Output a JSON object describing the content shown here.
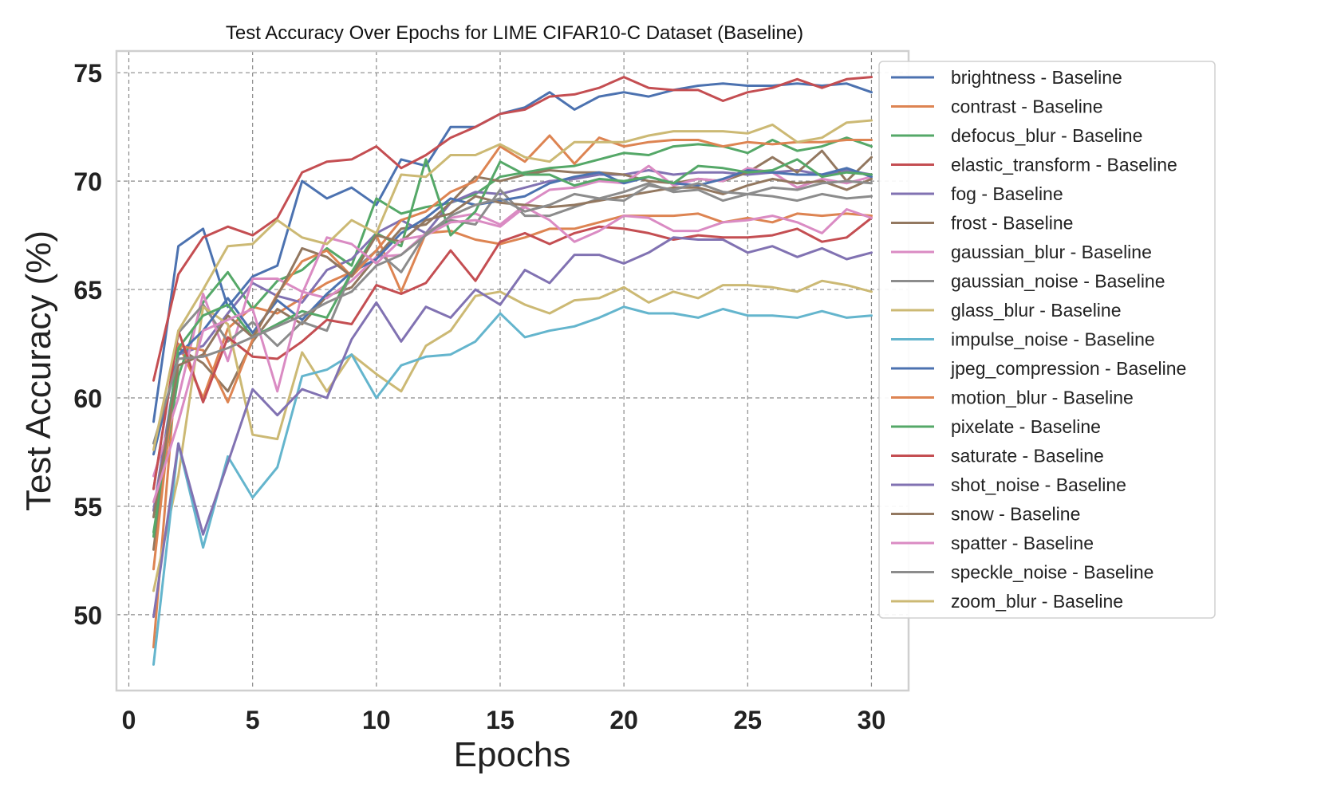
{
  "chart_data": {
    "type": "line",
    "title": "Test Accuracy Over Epochs for LIME CIFAR10-C Dataset (Baseline)",
    "xlabel": "Epochs",
    "ylabel": "Test Accuracy (%)",
    "xlim": [
      -0.5,
      31.5
    ],
    "ylim": [
      46.5,
      76
    ],
    "xticks": [
      0,
      5,
      10,
      15,
      20,
      25,
      30
    ],
    "yticks": [
      50,
      55,
      60,
      65,
      70,
      75
    ],
    "grid": true,
    "legend_position": "upper-right, outside plot area",
    "x": [
      1,
      2,
      3,
      4,
      5,
      6,
      7,
      8,
      9,
      10,
      11,
      12,
      13,
      14,
      15,
      16,
      17,
      18,
      19,
      20,
      21,
      22,
      23,
      24,
      25,
      26,
      27,
      28,
      29,
      30
    ],
    "series": [
      {
        "name": "brightness - Baseline",
        "color": "#4c72b0",
        "values": [
          58.9,
          67.0,
          67.8,
          64.2,
          65.6,
          66.1,
          70.0,
          69.2,
          69.7,
          68.9,
          71.0,
          70.7,
          72.5,
          72.5,
          73.1,
          73.4,
          74.1,
          73.3,
          73.9,
          74.1,
          73.9,
          74.2,
          74.4,
          74.5,
          74.4,
          74.4,
          74.5,
          74.4,
          74.5,
          74.1
        ]
      },
      {
        "name": "contrast - Baseline",
        "color": "#dd8452",
        "values": [
          48.5,
          62.5,
          60.0,
          63.2,
          64.2,
          63.9,
          64.6,
          65.3,
          65.8,
          67.5,
          64.9,
          67.6,
          67.7,
          67.3,
          67.1,
          67.4,
          67.8,
          67.8,
          68.1,
          68.4,
          68.4,
          68.4,
          68.5,
          68.1,
          68.3,
          68.1,
          68.5,
          68.4,
          68.5,
          68.4
        ]
      },
      {
        "name": "defocus_blur - Baseline",
        "color": "#55a868",
        "values": [
          53.8,
          61.0,
          64.4,
          65.8,
          64.1,
          65.4,
          65.9,
          66.9,
          66.1,
          69.2,
          68.5,
          68.8,
          69.0,
          69.4,
          70.2,
          70.4,
          70.6,
          70.7,
          71.0,
          71.3,
          71.2,
          71.6,
          71.7,
          71.6,
          71.3,
          71.9,
          71.4,
          71.6,
          72.0,
          71.6
        ]
      },
      {
        "name": "elastic_transform - Baseline",
        "color": "#c44e52",
        "values": [
          60.8,
          65.7,
          67.4,
          67.9,
          67.5,
          68.3,
          70.4,
          70.9,
          71.0,
          71.6,
          70.6,
          71.2,
          72.0,
          72.5,
          73.1,
          73.3,
          73.9,
          74.0,
          74.3,
          74.8,
          74.3,
          74.2,
          74.2,
          73.7,
          74.1,
          74.3,
          74.7,
          74.3,
          74.7,
          74.8
        ]
      },
      {
        "name": "fog - Baseline",
        "color": "#8172b2",
        "values": [
          54.8,
          62.0,
          62.4,
          63.9,
          65.3,
          64.7,
          64.4,
          65.9,
          66.4,
          67.6,
          68.2,
          67.6,
          69.0,
          69.5,
          69.4,
          69.7,
          70.0,
          70.1,
          70.3,
          70.3,
          70.5,
          70.3,
          70.4,
          70.4,
          70.3,
          70.4,
          70.5,
          70.3,
          70.5,
          70.3
        ]
      },
      {
        "name": "frost - Baseline",
        "color": "#937860",
        "values": [
          53.0,
          62.3,
          61.6,
          60.3,
          62.6,
          64.1,
          63.4,
          64.7,
          65.1,
          66.5,
          67.8,
          68.0,
          69.0,
          70.2,
          70.0,
          70.3,
          70.5,
          70.4,
          70.4,
          70.3,
          70.0,
          69.9,
          70.1,
          70.0,
          70.4,
          71.1,
          70.4,
          71.4,
          70.0,
          71.1
        ]
      },
      {
        "name": "gaussian_blur - Baseline",
        "color": "#da8bc3",
        "values": [
          56.4,
          60.0,
          64.8,
          61.7,
          65.5,
          65.5,
          64.9,
          64.6,
          65.4,
          66.5,
          66.6,
          67.6,
          68.3,
          68.5,
          68.0,
          68.9,
          69.6,
          69.7,
          70.0,
          69.9,
          70.7,
          69.8,
          70.1,
          70.0,
          70.6,
          70.4,
          69.7,
          70.1,
          69.9,
          70.2
        ]
      },
      {
        "name": "gaussian_noise - Baseline",
        "color": "#8c8c8c",
        "values": [
          55.8,
          63.0,
          64.3,
          62.6,
          63.5,
          62.4,
          63.5,
          63.1,
          65.8,
          66.8,
          65.8,
          67.6,
          68.2,
          68.0,
          69.6,
          68.4,
          68.4,
          68.8,
          69.2,
          69.5,
          69.9,
          69.5,
          69.6,
          69.1,
          69.4,
          69.3,
          69.1,
          69.4,
          69.2,
          69.3
        ]
      },
      {
        "name": "glass_blur - Baseline",
        "color": "#ccb974",
        "values": [
          51.1,
          56.4,
          64.2,
          63.4,
          58.3,
          58.1,
          62.1,
          60.3,
          62.0,
          61.1,
          60.3,
          62.4,
          63.1,
          64.7,
          64.9,
          64.3,
          63.9,
          64.5,
          64.6,
          65.1,
          64.4,
          64.9,
          64.6,
          65.2,
          65.2,
          65.1,
          64.9,
          65.4,
          65.2,
          64.9
        ]
      },
      {
        "name": "impulse_noise - Baseline",
        "color": "#64b5cd",
        "values": [
          47.7,
          57.9,
          53.1,
          57.3,
          55.4,
          56.8,
          61.0,
          61.3,
          62.0,
          60.0,
          61.5,
          61.9,
          62.0,
          62.6,
          63.9,
          62.8,
          63.1,
          63.3,
          63.7,
          64.2,
          63.9,
          63.9,
          63.7,
          64.1,
          63.8,
          63.8,
          63.7,
          64.0,
          63.7,
          63.8
        ]
      },
      {
        "name": "jpeg_compression - Baseline",
        "color": "#4c72b0",
        "values": [
          57.4,
          62.0,
          63.1,
          64.6,
          63.0,
          64.5,
          63.6,
          64.8,
          65.8,
          66.4,
          67.6,
          68.3,
          69.2,
          68.9,
          69.1,
          69.3,
          69.9,
          70.2,
          70.4,
          69.9,
          70.2,
          69.9,
          69.8,
          70.1,
          70.5,
          70.4,
          70.3,
          70.3,
          70.6,
          70.2
        ]
      },
      {
        "name": "motion_blur - Baseline",
        "color": "#dd8452",
        "values": [
          52.1,
          62.4,
          62.2,
          59.8,
          62.7,
          64.8,
          66.3,
          66.8,
          65.6,
          66.8,
          68.2,
          68.6,
          69.5,
          70.0,
          71.6,
          70.9,
          72.1,
          70.8,
          72.0,
          71.6,
          71.8,
          71.9,
          71.9,
          71.6,
          71.8,
          71.7,
          71.8,
          71.8,
          71.9,
          71.9
        ]
      },
      {
        "name": "pixelate - Baseline",
        "color": "#55a868",
        "values": [
          53.6,
          62.3,
          63.8,
          64.3,
          62.8,
          63.4,
          64.0,
          63.7,
          65.8,
          67.6,
          67.0,
          71.0,
          67.5,
          68.6,
          70.9,
          70.3,
          70.3,
          69.8,
          70.1,
          70.0,
          70.2,
          69.9,
          70.7,
          70.6,
          70.4,
          70.5,
          71.0,
          70.2,
          70.4,
          70.3
        ]
      },
      {
        "name": "saturate - Baseline",
        "color": "#c44e52",
        "values": [
          55.8,
          63.1,
          59.8,
          62.8,
          61.9,
          61.8,
          62.6,
          63.6,
          63.4,
          65.2,
          64.8,
          65.3,
          66.8,
          65.4,
          67.2,
          67.6,
          67.1,
          67.6,
          67.9,
          67.8,
          67.6,
          67.3,
          67.5,
          67.4,
          67.4,
          67.5,
          67.8,
          67.2,
          67.4,
          68.3
        ]
      },
      {
        "name": "shot_noise - Baseline",
        "color": "#8172b2",
        "values": [
          49.9,
          57.9,
          53.7,
          57.0,
          60.4,
          59.2,
          60.4,
          60.0,
          62.7,
          64.4,
          62.6,
          64.2,
          63.7,
          65.0,
          64.3,
          65.9,
          65.3,
          66.6,
          66.6,
          66.2,
          66.7,
          67.4,
          67.3,
          67.3,
          66.7,
          67.0,
          66.5,
          66.9,
          66.4,
          66.7
        ]
      },
      {
        "name": "snow - Baseline",
        "color": "#937860",
        "values": [
          54.5,
          61.5,
          62.0,
          63.8,
          62.8,
          64.7,
          66.9,
          66.5,
          65.6,
          67.5,
          67.2,
          68.2,
          68.5,
          69.3,
          69.0,
          68.9,
          68.8,
          68.9,
          69.1,
          69.3,
          69.5,
          69.7,
          69.7,
          69.4,
          69.8,
          70.1,
          69.9,
          70.0,
          69.6,
          70.1
        ]
      },
      {
        "name": "spatter - Baseline",
        "color": "#da8bc3",
        "values": [
          55.2,
          58.9,
          63.1,
          63.6,
          64.1,
          60.3,
          64.8,
          67.4,
          67.1,
          66.2,
          67.3,
          67.5,
          68.1,
          68.2,
          67.9,
          68.8,
          68.2,
          67.2,
          67.7,
          68.4,
          68.3,
          67.7,
          67.7,
          68.1,
          68.2,
          68.4,
          68.1,
          67.6,
          68.7,
          68.3
        ]
      },
      {
        "name": "speckle_noise - Baseline",
        "color": "#8c8c8c",
        "values": [
          57.9,
          61.8,
          61.9,
          62.3,
          62.8,
          63.3,
          63.8,
          64.4,
          64.9,
          66.1,
          66.6,
          67.5,
          68.4,
          68.9,
          69.2,
          68.6,
          68.9,
          69.4,
          69.2,
          69.1,
          69.8,
          69.6,
          69.9,
          69.5,
          69.4,
          69.7,
          69.6,
          69.9,
          70.0,
          69.9
        ]
      },
      {
        "name": "zoom_blur - Baseline",
        "color": "#ccb974",
        "values": [
          57.6,
          63.1,
          65.0,
          67.0,
          67.1,
          68.2,
          67.4,
          67.1,
          68.2,
          67.6,
          70.3,
          70.2,
          71.2,
          71.2,
          71.7,
          71.1,
          70.9,
          71.8,
          71.8,
          71.8,
          72.1,
          72.3,
          72.3,
          72.3,
          72.2,
          72.6,
          71.8,
          72.0,
          72.7,
          72.8
        ]
      }
    ]
  }
}
